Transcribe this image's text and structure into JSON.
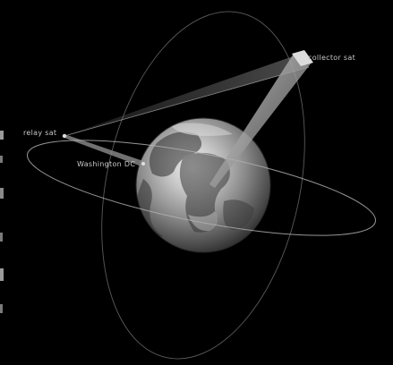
{
  "labels": {
    "collector_sat": "collector sat",
    "relay_sat": "relay sat",
    "washington": "Washington DC"
  },
  "colors": {
    "background": "#000000",
    "orbit": "#8a8a8a",
    "label": "#c8c8c8",
    "beam": "#9a9a9a"
  }
}
